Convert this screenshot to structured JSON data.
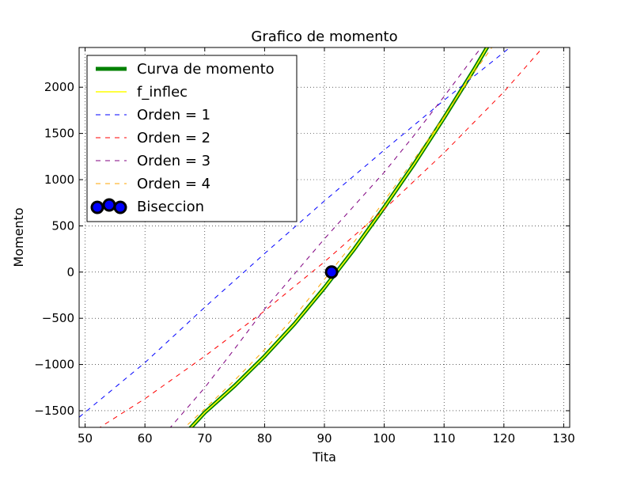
{
  "chart_data": {
    "type": "line",
    "title": "Grafico de momento",
    "xlabel": "Tita",
    "ylabel": "Momento",
    "xlim": [
      49,
      131
    ],
    "ylim": [
      -1680,
      2430
    ],
    "x_ticks": [
      50,
      60,
      70,
      80,
      90,
      100,
      110,
      120,
      130
    ],
    "y_ticks": [
      -1500,
      -1000,
      -500,
      0,
      500,
      1000,
      1500,
      2000
    ],
    "x_tick_labels": [
      "50",
      "60",
      "70",
      "80",
      "90",
      "100",
      "110",
      "120",
      "130"
    ],
    "y_tick_labels": [
      "−1500",
      "−1000",
      "−500",
      "0",
      "500",
      "1000",
      "1500",
      "2000"
    ],
    "grid": true,
    "legend_position": "top-left",
    "series": [
      {
        "name": "Curva de momento",
        "color": "#008000",
        "style": "solid-thick",
        "x": [
          66,
          70,
          75,
          80,
          85,
          90,
          95,
          100,
          105,
          110,
          115,
          118
        ],
        "y": [
          -1800,
          -1520,
          -1230,
          -910,
          -560,
          -170,
          250,
          700,
          1170,
          1670,
          2190,
          2520
        ]
      },
      {
        "name": "f_inflec",
        "color": "#ffff00",
        "style": "solid",
        "x": [
          66,
          70,
          75,
          80,
          85,
          90,
          95,
          100,
          105,
          110,
          115,
          118
        ],
        "y": [
          -1800,
          -1520,
          -1230,
          -910,
          -560,
          -170,
          250,
          700,
          1170,
          1670,
          2190,
          2520
        ]
      },
      {
        "name": "Orden = 1",
        "color": "#0000ff",
        "style": "dashed",
        "x": [
          49,
          60,
          70,
          80,
          90,
          100,
          110,
          121
        ],
        "y": [
          -1570,
          -980,
          -380,
          200,
          770,
          1320,
          1860,
          2430
        ]
      },
      {
        "name": "Orden = 2",
        "color": "#ff0000",
        "style": "dashed",
        "x": [
          52,
          60,
          70,
          80,
          90,
          100,
          110,
          120,
          126.5
        ],
        "y": [
          -1700,
          -1370,
          -910,
          -420,
          110,
          680,
          1290,
          1950,
          2430
        ]
      },
      {
        "name": "Orden = 3",
        "color": "#800080",
        "style": "dashed",
        "x": [
          64,
          70,
          75,
          80,
          85,
          90,
          95,
          100,
          105,
          110,
          115,
          117
        ],
        "y": [
          -1700,
          -1250,
          -830,
          -400,
          -20,
          360,
          720,
          1080,
          1480,
          1900,
          2330,
          2490
        ]
      },
      {
        "name": "Orden = 4",
        "color": "#ffa500",
        "style": "dashed",
        "x": [
          66,
          70,
          75,
          80,
          85,
          90,
          95,
          100,
          105,
          110,
          115,
          119
        ],
        "y": [
          -1720,
          -1480,
          -1170,
          -840,
          -480,
          -80,
          330,
          770,
          1220,
          1680,
          2160,
          2520
        ]
      },
      {
        "name": "Biseccion",
        "color": "#000000",
        "style": "marker",
        "x": [
          91.2
        ],
        "y": [
          0
        ]
      }
    ]
  }
}
